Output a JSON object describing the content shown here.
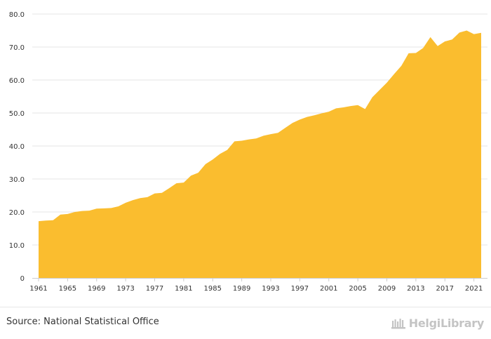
{
  "chart_data": {
    "type": "area",
    "title": "",
    "xlabel": "",
    "ylabel": "",
    "x": [
      1961,
      1962,
      1963,
      1964,
      1965,
      1966,
      1967,
      1968,
      1969,
      1970,
      1971,
      1972,
      1973,
      1974,
      1975,
      1976,
      1977,
      1978,
      1979,
      1980,
      1981,
      1982,
      1983,
      1984,
      1985,
      1986,
      1987,
      1988,
      1989,
      1990,
      1991,
      1992,
      1993,
      1994,
      1995,
      1996,
      1997,
      1998,
      1999,
      2000,
      2001,
      2002,
      2003,
      2004,
      2005,
      2006,
      2007,
      2008,
      2009,
      2010,
      2011,
      2012,
      2013,
      2014,
      2015,
      2016,
      2017,
      2018,
      2019,
      2020,
      2021,
      2022
    ],
    "values": [
      17.2,
      17.4,
      17.5,
      19.2,
      19.4,
      20.0,
      20.3,
      20.4,
      21.0,
      21.1,
      21.2,
      21.7,
      22.8,
      23.6,
      24.2,
      24.5,
      25.6,
      25.8,
      27.2,
      28.7,
      28.9,
      31.0,
      31.9,
      34.5,
      35.9,
      37.6,
      38.8,
      41.4,
      41.6,
      42.0,
      42.3,
      43.1,
      43.6,
      44.0,
      45.5,
      47.0,
      48.0,
      48.8,
      49.3,
      49.9,
      50.4,
      51.4,
      51.7,
      52.1,
      52.4,
      51.2,
      54.8,
      57.0,
      59.2,
      61.8,
      64.3,
      68.1,
      68.2,
      69.7,
      73.0,
      70.3,
      71.7,
      72.3,
      74.4,
      75.0,
      73.9,
      74.3
    ],
    "ylim": [
      0,
      80
    ],
    "yticks": [
      "0",
      "10.0",
      "20.0",
      "30.0",
      "40.0",
      "50.0",
      "60.0",
      "70.0",
      "80.0"
    ],
    "xticks": [
      "1961",
      "1965",
      "1969",
      "1973",
      "1977",
      "1981",
      "1985",
      "1989",
      "1993",
      "1997",
      "2001",
      "2005",
      "2009",
      "2013",
      "2017",
      "2021"
    ],
    "grid": true,
    "fill_color": "#fabd2f"
  },
  "footer": {
    "source": "Source: National Statistical Office",
    "brand": "HelgiLibrary"
  }
}
